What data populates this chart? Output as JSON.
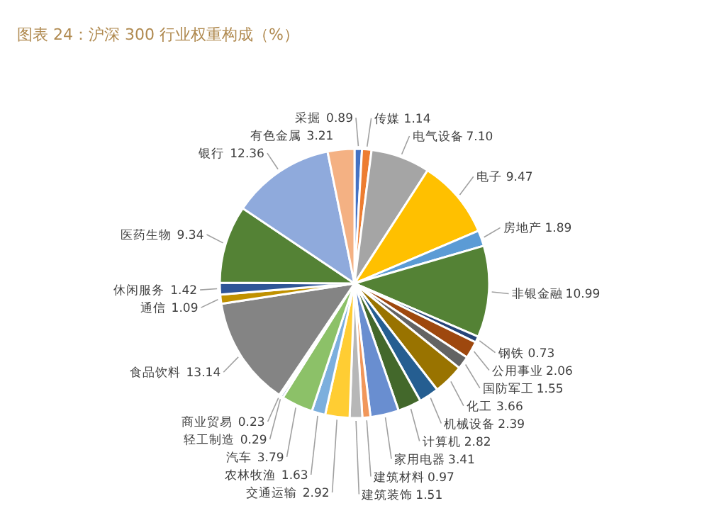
{
  "chart_data": {
    "type": "pie",
    "title": "图表 24：沪深 300 行业权重构成（%）",
    "categories": [
      "采掘",
      "传媒",
      "电气设备",
      "电子",
      "房地产",
      "非银金融",
      "钢铁",
      "公用事业",
      "国防军工",
      "化工",
      "机械设备",
      "计算机",
      "家用电器",
      "建筑材料",
      "建筑装饰",
      "交通运输",
      "农林牧渔",
      "汽车",
      "轻工制造",
      "商业贸易",
      "食品饮料",
      "通信",
      "休闲服务",
      "医药生物",
      "银行",
      "有色金属"
    ],
    "values": [
      0.89,
      1.14,
      7.1,
      9.47,
      1.89,
      10.99,
      0.73,
      2.06,
      1.55,
      3.66,
      2.39,
      2.82,
      3.41,
      0.97,
      1.51,
      2.92,
      1.63,
      3.79,
      0.29,
      0.23,
      13.14,
      1.09,
      1.42,
      9.34,
      12.36,
      3.21
    ],
    "colors": [
      "#4472c4",
      "#ed7d31",
      "#a5a5a5",
      "#ffc000",
      "#5b9bd5",
      "#548235",
      "#264478",
      "#9e480e",
      "#636363",
      "#997300",
      "#255e91",
      "#43682b",
      "#698ed0",
      "#f1975a",
      "#b7b7b7",
      "#ffcd33",
      "#7cafdd",
      "#8cc168",
      "#335aa1",
      "#d26012",
      "#848484",
      "#c09100",
      "#2f5597",
      "#548235",
      "#8faadc",
      "#f4b183"
    ],
    "value_labels": [
      "0.89",
      "1.14",
      "7.10",
      "9.47",
      "1.89",
      "10.99",
      "0.73",
      "2.06",
      "1.55",
      "3.66",
      "2.39",
      "2.82",
      "3.41",
      "0.97",
      "1.51",
      "2.92",
      "1.63",
      "3.79",
      "0.29",
      "0.23",
      "13.14",
      "1.09",
      "1.42",
      "9.34",
      "12.36",
      "3.21"
    ],
    "data_labels": true,
    "legend": false
  }
}
